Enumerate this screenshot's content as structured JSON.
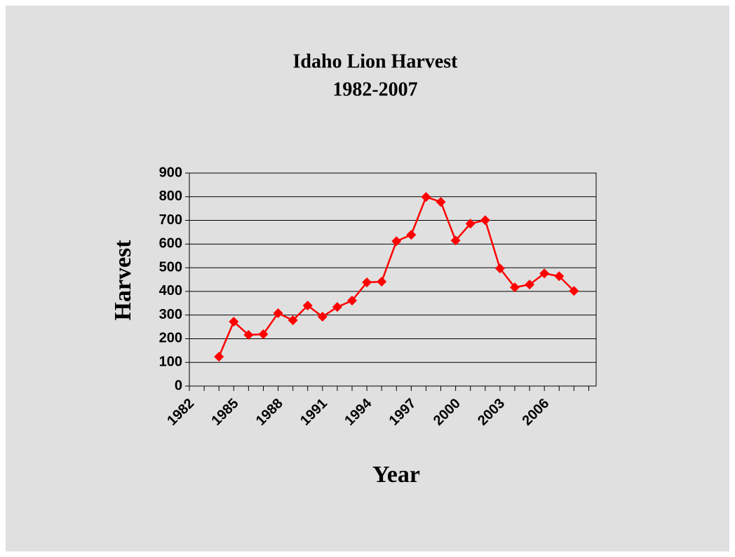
{
  "chart_data": {
    "type": "line",
    "title": "Idaho Lion Harvest",
    "subtitle": "1982-2007",
    "x_label": "Year",
    "y_label": "Harvest",
    "categories": [
      "1982",
      null,
      null,
      "1985",
      null,
      null,
      "1988",
      null,
      null,
      "1991",
      null,
      null,
      "1994",
      null,
      null,
      "1997",
      null,
      null,
      "2000",
      null,
      null,
      "2003",
      null,
      null,
      "2006",
      null,
      null,
      null
    ],
    "series": [
      {
        "name": "Harvest",
        "color": "#ff0000",
        "values": [
          null,
          null,
          124,
          272,
          216,
          219,
          308,
          278,
          340,
          293,
          334,
          361,
          438,
          441,
          612,
          639,
          799,
          778,
          615,
          686,
          701,
          497,
          417,
          429,
          476,
          464,
          402,
          null
        ]
      }
    ],
    "ylim": [
      0,
      900
    ],
    "yticks": [
      0,
      100,
      200,
      300,
      400,
      500,
      600,
      700,
      800,
      900
    ],
    "grid": true
  }
}
